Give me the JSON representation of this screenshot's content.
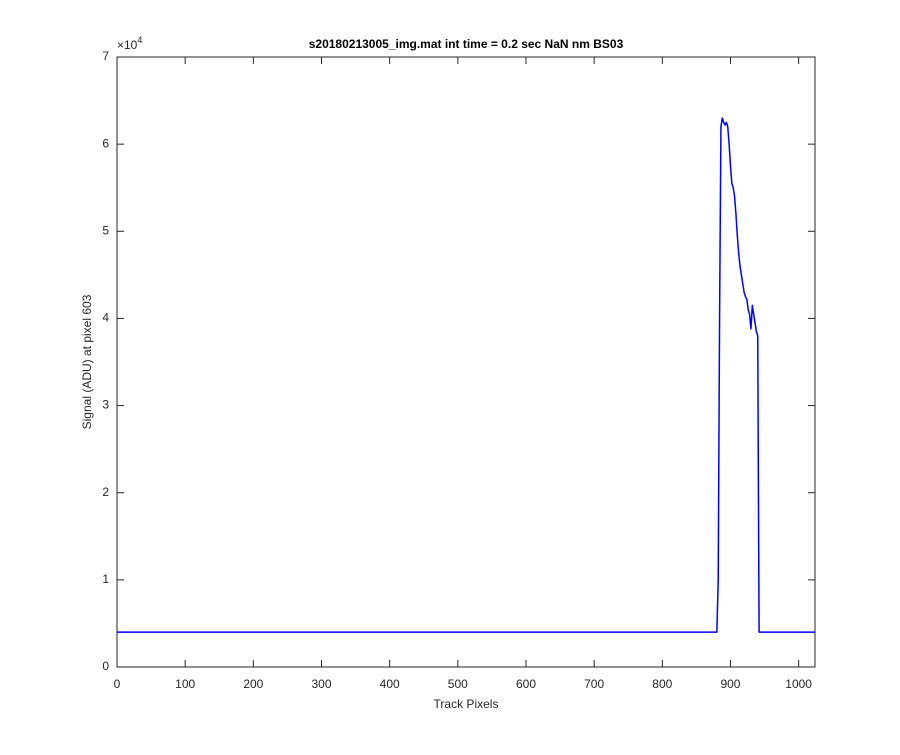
{
  "chart_data": {
    "type": "line",
    "title": "s20180213005_img.mat int time = 0.2 sec  NaN nm BS03",
    "x_label": "Track Pixels",
    "y_label": "Signal (ADU) at pixel 603",
    "y_multiplier": {
      "base": "×10",
      "exponent": "4"
    },
    "xlim": [
      0,
      1024
    ],
    "ylim": [
      0,
      7
    ],
    "xticks": [
      0,
      100,
      200,
      300,
      400,
      500,
      600,
      700,
      800,
      900,
      1000
    ],
    "yticks": [
      0,
      1,
      2,
      3,
      4,
      5,
      6,
      7
    ],
    "grid": false,
    "series": [
      {
        "color": "#0000ff",
        "x": [
          0,
          880,
          882,
          884,
          886,
          888,
          890,
          892,
          894,
          896,
          898,
          900,
          902,
          904,
          906,
          908,
          910,
          912,
          914,
          916,
          918,
          920,
          922,
          924,
          926,
          928,
          930,
          931,
          932,
          934,
          936,
          938,
          940,
          941,
          942,
          1024
        ],
        "values": [
          0.4,
          0.4,
          1.0,
          4.0,
          6.2,
          6.3,
          6.25,
          6.22,
          6.25,
          6.2,
          6.0,
          5.75,
          5.55,
          5.5,
          5.4,
          5.2,
          4.95,
          4.75,
          4.6,
          4.5,
          4.4,
          4.3,
          4.25,
          4.22,
          4.1,
          4.05,
          3.88,
          4.0,
          4.15,
          4.05,
          3.95,
          3.85,
          3.8,
          2.0,
          0.4,
          0.4
        ]
      }
    ]
  }
}
